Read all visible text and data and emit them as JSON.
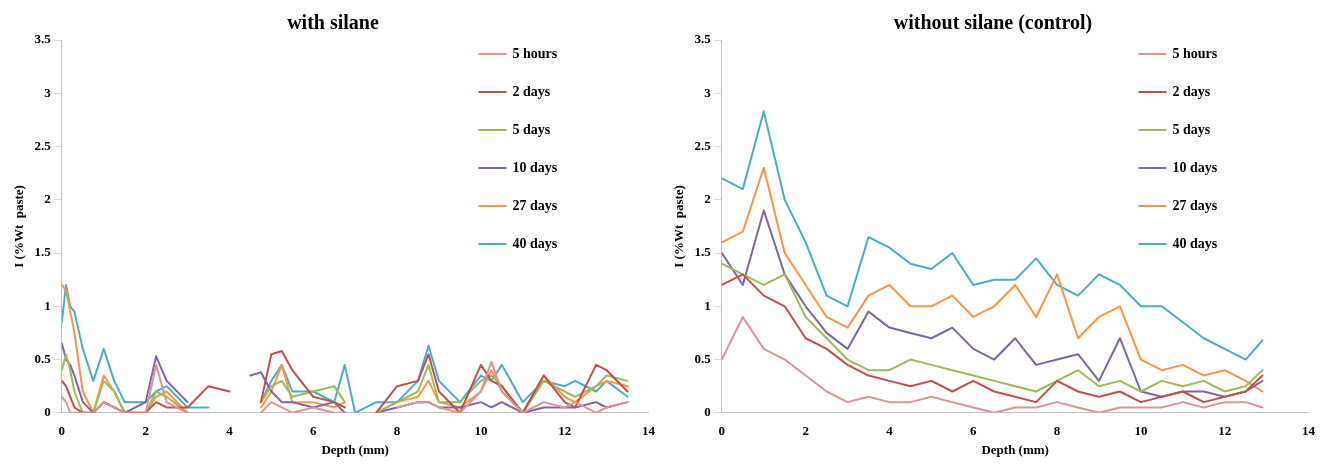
{
  "chart_data": [
    {
      "type": "line",
      "title": "with silane",
      "xlabel": "Depth (mm)",
      "ylabel": "I (%Wt  paste)",
      "x": [
        0,
        0.1,
        0.2,
        0.3,
        0.5,
        0.75,
        1,
        1.25,
        1.5,
        2,
        2.25,
        2.5,
        3,
        3.5,
        4,
        4.5,
        4.75,
        5,
        5.25,
        5.5,
        6,
        6.5,
        6.75,
        7,
        7.5,
        8,
        8.5,
        8.75,
        9,
        9.5,
        10,
        10.25,
        10.5,
        11,
        11.5,
        12,
        12.25,
        12.75,
        13,
        13.5
      ],
      "xlim": [
        0,
        14
      ],
      "xticks": [
        0,
        2,
        4,
        6,
        8,
        10,
        12,
        14
      ],
      "ylim": [
        0,
        3.5
      ],
      "yticks": [
        0,
        0.5,
        1,
        1.5,
        2,
        2.5,
        3,
        3.5
      ],
      "grid": false,
      "legend": "top right",
      "marker": "none",
      "line_style": "solid",
      "series": [
        {
          "name": "5 hours",
          "color": "#d99694",
          "values": [
            0.15,
            0.1,
            0,
            0,
            0,
            0,
            0.1,
            0.05,
            0,
            0,
            0.45,
            0.1,
            0,
            null,
            null,
            null,
            0,
            0.1,
            0.05,
            0,
            0.05,
            0,
            0,
            null,
            null,
            0.05,
            0.1,
            0.1,
            0.05,
            0,
            0.2,
            0.48,
            0.2,
            0,
            0.1,
            0.05,
            0.1,
            0,
            0.05,
            0.1
          ]
        },
        {
          "name": "2 days",
          "color": "#c0504d",
          "values": [
            0.3,
            0.25,
            0.15,
            0.05,
            0,
            0,
            0.1,
            0.05,
            0,
            0,
            0.1,
            0.05,
            0.05,
            0.25,
            0.2,
            null,
            0.1,
            0.55,
            0.58,
            0.4,
            0.15,
            0.1,
            0.05,
            null,
            0,
            0.25,
            0.3,
            0.55,
            0.2,
            0,
            0.45,
            0.3,
            0.25,
            0,
            0.35,
            0.1,
            0.05,
            0.45,
            0.4,
            0.2
          ]
        },
        {
          "name": "5 days",
          "color": "#9bbb59",
          "values": [
            0.4,
            0.55,
            0.4,
            0.2,
            0,
            0,
            0.3,
            0.2,
            0,
            0,
            0.2,
            0.15,
            0,
            null,
            null,
            null,
            0.1,
            0.25,
            0.3,
            0.15,
            0.2,
            0.25,
            0.1,
            null,
            0,
            0.1,
            0.2,
            0.45,
            0.1,
            0.1,
            0.3,
            0.35,
            0.25,
            0,
            0.3,
            0.2,
            0.15,
            0.25,
            0.35,
            0.3
          ]
        },
        {
          "name": "10 days",
          "color": "#8064a2",
          "values": [
            0.65,
            0.5,
            0.45,
            0.35,
            0.1,
            0,
            0.1,
            0.05,
            0,
            0.1,
            0.53,
            0.3,
            0.1,
            null,
            null,
            0.35,
            0.38,
            0.2,
            0.1,
            0.1,
            0.05,
            0.1,
            0,
            null,
            0,
            0.05,
            0.1,
            0.1,
            0.05,
            0.05,
            0.1,
            0.05,
            0.1,
            0,
            0.05,
            0.05,
            0.05,
            0.1,
            0.05,
            0.1
          ]
        },
        {
          "name": "27 days",
          "color": "#f79646",
          "values": [
            1.2,
            1.15,
            0.95,
            0.75,
            0.2,
            0,
            0.35,
            0.2,
            0,
            0,
            0.15,
            0.2,
            0,
            null,
            null,
            null,
            0.05,
            0.2,
            0.45,
            0.1,
            0.1,
            0.05,
            0.1,
            null,
            0,
            0.1,
            0.15,
            0.3,
            0.1,
            0.05,
            0.2,
            0.4,
            0.2,
            0,
            0.35,
            0.15,
            0.1,
            0.25,
            0.3,
            0.25
          ]
        },
        {
          "name": "40 days",
          "color": "#4bacc6",
          "values": [
            0.85,
            1.2,
            1.0,
            0.95,
            0.6,
            0.3,
            0.6,
            0.3,
            0.1,
            0.1,
            0.2,
            0.25,
            0.05,
            0.05,
            null,
            null,
            0.1,
            0.3,
            0.45,
            0.2,
            0.2,
            0.1,
            0.45,
            0,
            0.1,
            0.1,
            0.3,
            0.63,
            0.3,
            0.1,
            0.35,
            0.3,
            0.45,
            0.1,
            0.3,
            0.25,
            0.3,
            0.2,
            0.3,
            0.15
          ]
        }
      ]
    },
    {
      "type": "line",
      "title": "without silane (control)",
      "xlabel": "Depth (mm)",
      "ylabel": "I (%Wt  paste)",
      "x": [
        0,
        0.5,
        1,
        1.5,
        2,
        2.5,
        3,
        3.5,
        4,
        4.5,
        5,
        5.5,
        6,
        6.5,
        7,
        7.5,
        8,
        8.5,
        9,
        9.5,
        10,
        10.5,
        11,
        11.5,
        12,
        12.5,
        12.9
      ],
      "xlim": [
        0,
        14
      ],
      "xticks": [
        0,
        2,
        4,
        6,
        8,
        10,
        12,
        14
      ],
      "ylim": [
        0,
        3.5
      ],
      "yticks": [
        0,
        0.5,
        1,
        1.5,
        2,
        2.5,
        3,
        3.5
      ],
      "grid": false,
      "legend": "top right",
      "marker": "none",
      "line_style": "solid",
      "series": [
        {
          "name": "5 hours",
          "color": "#d99694",
          "values": [
            0.5,
            0.9,
            0.6,
            0.5,
            0.35,
            0.2,
            0.1,
            0.15,
            0.1,
            0.1,
            0.15,
            0.1,
            0.05,
            0,
            0.05,
            0.05,
            0.1,
            0.05,
            0,
            0.05,
            0.05,
            0.05,
            0.1,
            0.05,
            0.1,
            0.1,
            0.05
          ]
        },
        {
          "name": "2 days",
          "color": "#c0504d",
          "values": [
            1.2,
            1.3,
            1.1,
            1.0,
            0.7,
            0.6,
            0.45,
            0.35,
            0.3,
            0.25,
            0.3,
            0.2,
            0.3,
            0.2,
            0.15,
            0.1,
            0.3,
            0.2,
            0.15,
            0.2,
            0.1,
            0.15,
            0.2,
            0.1,
            0.15,
            0.2,
            0.35
          ]
        },
        {
          "name": "5 days",
          "color": "#9bbb59",
          "values": [
            1.4,
            1.3,
            1.2,
            1.3,
            0.9,
            0.7,
            0.5,
            0.4,
            0.4,
            0.5,
            0.45,
            0.4,
            0.35,
            0.3,
            0.25,
            0.2,
            0.3,
            0.4,
            0.25,
            0.3,
            0.2,
            0.3,
            0.25,
            0.3,
            0.2,
            0.25,
            0.4
          ]
        },
        {
          "name": "10 days",
          "color": "#8064a2",
          "values": [
            1.5,
            1.2,
            1.9,
            1.3,
            1.0,
            0.75,
            0.6,
            0.95,
            0.8,
            0.75,
            0.7,
            0.8,
            0.6,
            0.5,
            0.7,
            0.45,
            0.5,
            0.55,
            0.3,
            0.7,
            0.2,
            0.15,
            0.2,
            0.2,
            0.15,
            0.2,
            0.3
          ]
        },
        {
          "name": "27 days",
          "color": "#f79646",
          "values": [
            1.6,
            1.7,
            2.3,
            1.5,
            1.2,
            0.9,
            0.8,
            1.1,
            1.2,
            1.0,
            1.0,
            1.1,
            0.9,
            1.0,
            1.2,
            0.9,
            1.3,
            0.7,
            0.9,
            1.0,
            0.5,
            0.4,
            0.45,
            0.35,
            0.4,
            0.3,
            0.2
          ]
        },
        {
          "name": "40 days",
          "color": "#4bacc6",
          "values": [
            2.2,
            2.1,
            2.83,
            2.0,
            1.6,
            1.1,
            1.0,
            1.65,
            1.55,
            1.4,
            1.35,
            1.5,
            1.2,
            1.25,
            1.25,
            1.45,
            1.2,
            1.1,
            1.3,
            1.2,
            1.0,
            1.0,
            0.85,
            0.7,
            0.6,
            0.5,
            0.68
          ]
        }
      ]
    }
  ]
}
